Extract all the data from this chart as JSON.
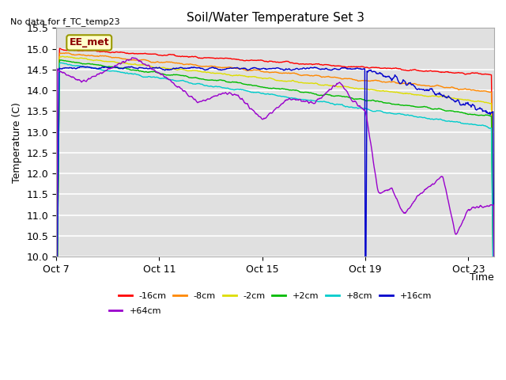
{
  "title": "Soil/Water Temperature Set 3",
  "no_data_label": "No data for f_TC_temp23",
  "ylabel": "Temperature (C)",
  "xlabel": "Time",
  "ylim": [
    10.0,
    15.5
  ],
  "yticks": [
    10.0,
    10.5,
    11.0,
    11.5,
    12.0,
    12.5,
    13.0,
    13.5,
    14.0,
    14.5,
    15.0,
    15.5
  ],
  "background_color": "#ffffff",
  "plot_bg_color": "#e0e0e0",
  "ee_met_box": {
    "text": "EE_met",
    "facecolor": "#ffffcc",
    "edgecolor": "#999900",
    "textcolor": "#8B0000"
  },
  "series": [
    {
      "label": "-16cm",
      "color": "#ff0000",
      "lw": 1.0
    },
    {
      "label": "-8cm",
      "color": "#ff8800",
      "lw": 1.0
    },
    {
      "label": "-2cm",
      "color": "#dddd00",
      "lw": 1.0
    },
    {
      "label": "+2cm",
      "color": "#00bb00",
      "lw": 1.0
    },
    {
      "label": "+8cm",
      "color": "#00cccc",
      "lw": 1.0
    },
    {
      "label": "+16cm",
      "color": "#0000cc",
      "lw": 1.0
    },
    {
      "label": "+64cm",
      "color": "#9900cc",
      "lw": 1.0
    }
  ],
  "x_tick_labels": [
    "Oct 7",
    "Oct 11",
    "Oct 15",
    "Oct 19",
    "Oct 23"
  ],
  "x_tick_positions": [
    0,
    4,
    8,
    12,
    16
  ],
  "legend_ncol_row1": 6,
  "seed": 42
}
